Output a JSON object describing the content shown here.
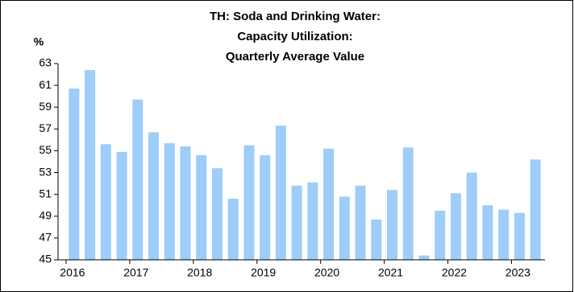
{
  "chart_data": {
    "type": "bar",
    "title": [
      "TH: Soda and Drinking Water:",
      "Capacity Utilization:",
      "Quarterly Average Value"
    ],
    "y_label": "%",
    "categories": [
      "2016",
      null,
      null,
      null,
      "2017",
      null,
      null,
      null,
      "2018",
      null,
      null,
      null,
      "2019",
      null,
      null,
      null,
      "2020",
      null,
      null,
      null,
      "2021",
      null,
      null,
      null,
      "2022",
      null,
      null,
      null,
      "2023",
      null
    ],
    "values": [
      60.7,
      62.4,
      55.6,
      54.9,
      59.7,
      56.7,
      55.7,
      55.4,
      54.6,
      53.4,
      50.6,
      55.5,
      54.6,
      57.3,
      51.8,
      52.1,
      55.2,
      50.8,
      51.8,
      48.7,
      51.4,
      55.3,
      45.4,
      49.5,
      51.1,
      53.0,
      50.0,
      49.6,
      49.3,
      54.2
    ],
    "color": "#9dcdf8",
    "ylim": [
      45,
      63
    ],
    "yticks": [
      45,
      47,
      49,
      51,
      53,
      55,
      57,
      59,
      61,
      63
    ],
    "grid": false
  }
}
